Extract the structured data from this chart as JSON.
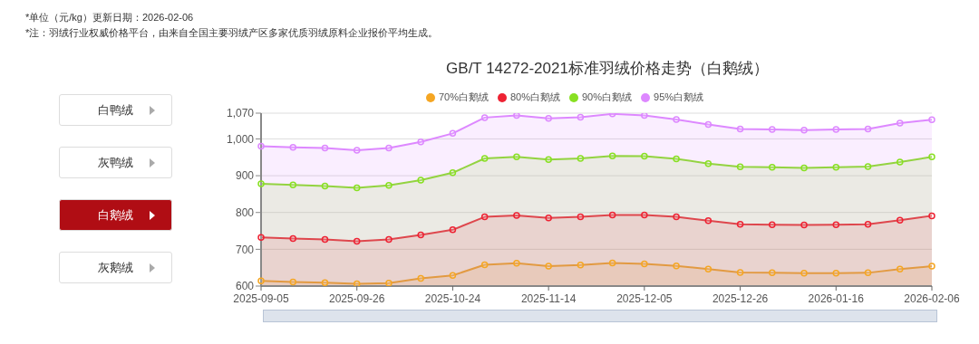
{
  "chart_data": {
    "type": "area",
    "title": "GB/T 14272-2021标准羽绒价格走势（白鹅绒）",
    "annotations": [
      "*单位（元/kg）更新日期：2026-02-06",
      "*注：羽绒行业权威价格平台，由来自全国主要羽绒产区多家优质羽绒原料企业报价平均生成。",
      "白鸭绒",
      "灰鸭绒",
      "白鹅绒",
      "灰鹅绒"
    ],
    "categories": [
      "2025-09-05",
      null,
      null,
      "2025-09-26",
      null,
      null,
      "2025-10-24",
      null,
      null,
      "2025-11-14",
      null,
      null,
      "2025-12-05",
      null,
      null,
      "2025-12-26",
      null,
      null,
      "2026-01-16",
      null,
      null,
      "2026-02-06"
    ],
    "series": [
      {
        "name": "70%白鹅绒",
        "color": "#f5a623",
        "values": [
          614,
          611,
          609,
          606,
          608,
          621,
          629,
          658,
          662,
          654,
          657,
          663,
          660,
          655,
          646,
          637,
          636,
          635,
          635,
          636,
          646,
          654
        ]
      },
      {
        "name": "80%白鹅绒",
        "color": "#ee2233",
        "values": [
          732,
          729,
          727,
          722,
          727,
          739,
          753,
          788,
          792,
          785,
          788,
          793,
          793,
          788,
          778,
          768,
          767,
          766,
          767,
          768,
          779,
          791
        ]
      },
      {
        "name": "90%白鹅绒",
        "color": "#88e022",
        "values": [
          878,
          875,
          872,
          867,
          874,
          888,
          908,
          947,
          951,
          944,
          947,
          954,
          953,
          946,
          933,
          924,
          923,
          921,
          923,
          925,
          937,
          951
        ]
      },
      {
        "name": "95%白鹅绒",
        "color": "#dd88ff",
        "values": [
          980,
          977,
          975,
          969,
          975,
          992,
          1015,
          1058,
          1064,
          1056,
          1059,
          1068,
          1064,
          1053,
          1039,
          1027,
          1026,
          1024,
          1026,
          1027,
          1043,
          1052
        ]
      }
    ],
    "ylim": [
      600,
      1070
    ],
    "yticks": [
      600,
      700,
      800,
      900,
      {
        "value": 1000,
        "label": "1,000"
      },
      {
        "value": 1070,
        "label": "1,070"
      }
    ],
    "grid": "y",
    "legend": "top",
    "marker": "circle",
    "line_style": "solid"
  }
}
